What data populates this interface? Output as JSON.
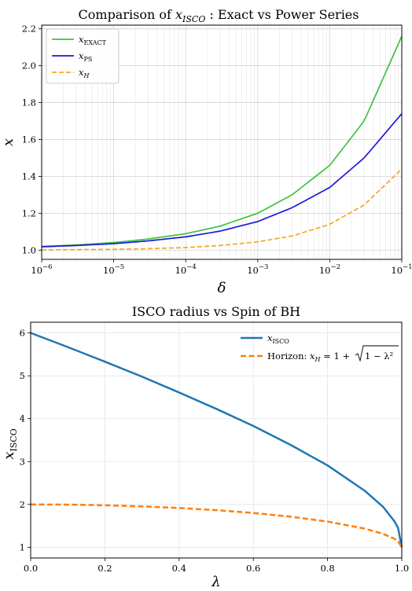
{
  "chart_data": [
    {
      "type": "line",
      "title_parts": [
        "Comparison of ",
        "x",
        "ISCO",
        " : Exact vs Power Series"
      ],
      "xlabel": "δ",
      "ylabel": "x",
      "x_scale": "log",
      "xlim": [
        1e-06,
        0.1
      ],
      "ylim": [
        0.95,
        2.22
      ],
      "grid": "both (major + minor, light)",
      "legend_position": "top-left",
      "x_ticks": [
        {
          "v": 1e-06,
          "base": "10",
          "exp": "−6"
        },
        {
          "v": 1e-05,
          "base": "10",
          "exp": "−5"
        },
        {
          "v": 0.0001,
          "base": "10",
          "exp": "−4"
        },
        {
          "v": 0.001,
          "base": "10",
          "exp": "−3"
        },
        {
          "v": 0.01,
          "base": "10",
          "exp": "−2"
        },
        {
          "v": 0.1,
          "base": "10",
          "exp": "−1"
        }
      ],
      "y_ticks": [
        {
          "v": 1.0,
          "label": "1.0"
        },
        {
          "v": 1.2,
          "label": "1.2"
        },
        {
          "v": 1.4,
          "label": "1.4"
        },
        {
          "v": 1.6,
          "label": "1.6"
        },
        {
          "v": 1.8,
          "label": "1.8"
        },
        {
          "v": 2.0,
          "label": "2.0"
        },
        {
          "v": 2.2,
          "label": "2.2"
        }
      ],
      "x": [
        1e-06,
        3e-06,
        1e-05,
        3e-05,
        0.0001,
        0.0003,
        0.001,
        0.003,
        0.01,
        0.03,
        0.1
      ],
      "series": [
        {
          "name_base": "x",
          "name_sub": "EXACT",
          "color": "#3cc43c",
          "dash": "solid",
          "values": [
            1.02,
            1.028,
            1.041,
            1.06,
            1.089,
            1.13,
            1.2,
            1.3,
            1.46,
            1.7,
            2.16
          ]
        },
        {
          "name_base": "x",
          "name_sub": "PS",
          "color": "#1a1adc",
          "dash": "solid",
          "values": [
            1.018,
            1.025,
            1.035,
            1.05,
            1.072,
            1.103,
            1.155,
            1.23,
            1.34,
            1.5,
            1.74
          ]
        },
        {
          "name_base": "x",
          "name_sub": "H",
          "color": "#f5a623",
          "dash": "dashed",
          "values": [
            1.0014,
            1.0025,
            1.0045,
            1.0077,
            1.014,
            1.025,
            1.045,
            1.077,
            1.14,
            1.245,
            1.44
          ]
        }
      ]
    },
    {
      "type": "line",
      "title": "ISCO radius vs Spin of BH",
      "xlabel": "λ",
      "ylabel_base": "x",
      "ylabel_sub": "ISCO",
      "xlim": [
        0,
        1
      ],
      "ylim": [
        0.75,
        6.25
      ],
      "grid": "major (light)",
      "legend_position": "top-right",
      "x_ticks": [
        {
          "v": 0.0,
          "label": "0.0"
        },
        {
          "v": 0.2,
          "label": "0.2"
        },
        {
          "v": 0.4,
          "label": "0.4"
        },
        {
          "v": 0.6,
          "label": "0.6"
        },
        {
          "v": 0.8,
          "label": "0.8"
        },
        {
          "v": 1.0,
          "label": "1.0"
        }
      ],
      "y_ticks": [
        {
          "v": 1,
          "label": "1"
        },
        {
          "v": 2,
          "label": "2"
        },
        {
          "v": 3,
          "label": "3"
        },
        {
          "v": 4,
          "label": "4"
        },
        {
          "v": 5,
          "label": "5"
        },
        {
          "v": 6,
          "label": "6"
        }
      ],
      "x": [
        0,
        0.1,
        0.2,
        0.3,
        0.4,
        0.5,
        0.6,
        0.7,
        0.8,
        0.9,
        0.95,
        0.98,
        0.99,
        1.0
      ],
      "series": [
        {
          "name_base": "x",
          "name_sub": "ISCO",
          "color": "#1f77b4",
          "dash": "solid",
          "values": [
            6.0,
            5.67,
            5.33,
            4.98,
            4.61,
            4.23,
            3.83,
            3.39,
            2.91,
            2.32,
            1.94,
            1.61,
            1.45,
            1.0
          ]
        },
        {
          "name_text": "Horizon: ",
          "name_math": "x",
          "name_math_sub": "H",
          "name_eq": " = 1 + ",
          "name_root": "1 − λ²",
          "color": "#ff7f0e",
          "dash": "dashed",
          "values": [
            2.0,
            1.995,
            1.98,
            1.954,
            1.917,
            1.866,
            1.8,
            1.714,
            1.6,
            1.436,
            1.312,
            1.199,
            1.141,
            1.0
          ]
        }
      ]
    }
  ]
}
